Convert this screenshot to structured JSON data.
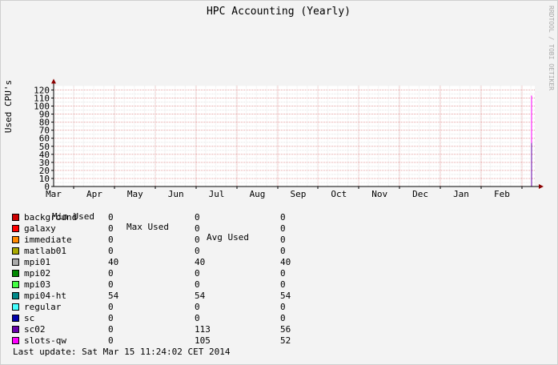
{
  "chart_data": {
    "type": "area",
    "title": "HPC Accounting (Yearly)",
    "ylabel": "Used CPU's",
    "xlabel": "",
    "watermark": "RRDTOOL / TOBI OETIKER",
    "ylim": [
      0,
      125
    ],
    "yticks": [
      0,
      10,
      20,
      30,
      40,
      50,
      60,
      70,
      80,
      90,
      100,
      110,
      120
    ],
    "xticks": [
      "Mar",
      "Apr",
      "May",
      "Jun",
      "Jul",
      "Aug",
      "Sep",
      "Oct",
      "Nov",
      "Dec",
      "Jan",
      "Feb"
    ],
    "grid": true,
    "series": [
      {
        "name": "slots-qw",
        "color": "#ff00ff",
        "x": [
          "Mar 15 2014"
        ],
        "values": [
          113
        ]
      },
      {
        "name": "sc02",
        "color": "#6600aa",
        "x": [
          "Mar 15 2014"
        ],
        "values": [
          54
        ]
      }
    ],
    "legend": {
      "headers": [
        "Min Used",
        "Max Used",
        "Avg Used"
      ],
      "rows": [
        {
          "name": "background",
          "color": "#cc0000",
          "min": "0",
          "max": "0",
          "avg": "0"
        },
        {
          "name": "galaxy",
          "color": "#ff0000",
          "min": "0",
          "max": "0",
          "avg": "0"
        },
        {
          "name": "immediate",
          "color": "#ff8800",
          "min": "0",
          "max": "0",
          "avg": "0"
        },
        {
          "name": "matlab01",
          "color": "#aaaa00",
          "min": "0",
          "max": "0",
          "avg": "0"
        },
        {
          "name": "mpi01",
          "color": "#aaaaaa",
          "min": "40",
          "max": "40",
          "avg": "40"
        },
        {
          "name": "mpi02",
          "color": "#008800",
          "min": "0",
          "max": "0",
          "avg": "0"
        },
        {
          "name": "mpi03",
          "color": "#44ff44",
          "min": "0",
          "max": "0",
          "avg": "0"
        },
        {
          "name": "mpi04-ht",
          "color": "#008888",
          "min": "54",
          "max": "54",
          "avg": "54"
        },
        {
          "name": "regular",
          "color": "#44ffff",
          "min": "0",
          "max": "0",
          "avg": "0"
        },
        {
          "name": "sc",
          "color": "#0000aa",
          "min": "0",
          "max": "0",
          "avg": "0"
        },
        {
          "name": "sc02",
          "color": "#6600aa",
          "min": "0",
          "max": "113",
          "avg": "56"
        },
        {
          "name": "slots-qw",
          "color": "#ff00ff",
          "min": "0",
          "max": "105",
          "avg": "52"
        }
      ]
    },
    "last_update": "Last update: Sat Mar 15 11:24:02 CET 2014"
  }
}
